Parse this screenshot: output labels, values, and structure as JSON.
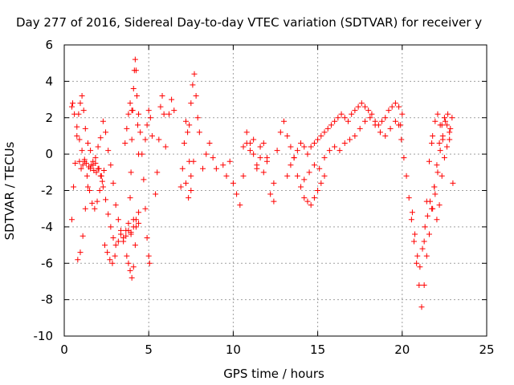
{
  "chart_data": {
    "type": "scatter",
    "title": "Day 277 of 2016, Sidereal Day-to-day VTEC variation (SDTVAR) for receiver y",
    "xlabel": "GPS time / hours",
    "ylabel": "SDTVAR / TECUs",
    "xlim": [
      0,
      25
    ],
    "ylim": [
      -10,
      6
    ],
    "xticks": [
      0,
      5,
      10,
      15,
      20,
      25
    ],
    "yticks": [
      -10,
      -8,
      -6,
      -4,
      -2,
      0,
      2,
      4,
      6
    ],
    "xtick_labels": [
      "0",
      "5",
      "10",
      "15",
      "20",
      "25"
    ],
    "ytick_labels": [
      "-10",
      "-8",
      "-6",
      "-4",
      "-2",
      "0",
      "2",
      "4",
      "6"
    ],
    "grid": true,
    "marker": "+",
    "series": [
      {
        "name": "SDTVAR",
        "color": "#ff0000",
        "tracks": [
          {
            "x": [
              0.45,
              0.5,
              0.6,
              0.75,
              0.9,
              1.05,
              1.2,
              1.35,
              1.5,
              1.65,
              1.8,
              1.95,
              2.1,
              2.25
            ],
            "y": [
              2.6,
              2.8,
              2.2,
              1.5,
              0.8,
              0.2,
              -0.4,
              -1.2,
              -2.0,
              -2.7,
              -3.0,
              -2.6,
              -2.0,
              -1.5
            ]
          },
          {
            "x": [
              0.45,
              0.55,
              0.65,
              0.75,
              0.85,
              0.95,
              1.05,
              1.15,
              1.25,
              1.4,
              1.55,
              1.7,
              1.85,
              2.0,
              2.15,
              2.3,
              2.45,
              2.6,
              2.75,
              2.9,
              3.05,
              3.2,
              3.35,
              3.5,
              3.65,
              3.8,
              3.95,
              4.1,
              4.25,
              4.4
            ],
            "y": [
              -3.6,
              -1.8,
              -0.5,
              1.0,
              2.2,
              2.8,
              3.2,
              2.4,
              1.4,
              0.6,
              0.2,
              -0.6,
              -0.2,
              0.4,
              0.9,
              1.8,
              1.2,
              0.2,
              -0.6,
              -1.6,
              -2.8,
              -3.6,
              -4.2,
              -4.6,
              -4.5,
              -4.2,
              -4.4,
              -4.0,
              -3.6,
              -3.2
            ]
          },
          {
            "x": [
              0.8,
              0.95,
              1.1,
              1.25,
              1.4,
              1.55,
              1.7,
              1.85,
              2.0,
              2.15,
              2.3,
              2.45,
              2.6,
              2.75,
              2.9,
              3.05,
              3.2,
              3.35,
              3.5,
              3.65,
              3.8,
              3.95,
              4.1,
              4.25,
              4.4
            ],
            "y": [
              -5.8,
              -5.4,
              -4.5,
              -3.0,
              -1.8,
              -0.8,
              -0.4,
              -0.5,
              -0.8,
              -1.2,
              -1.8,
              -2.5,
              -3.3,
              -4.0,
              -4.6,
              -5.0,
              -4.8,
              -4.4,
              -4.8,
              -4.2,
              -3.8,
              -4.3,
              -3.6,
              -4.0,
              -3.8
            ]
          },
          {
            "x": [
              0.9,
              1.0,
              1.1,
              1.2,
              1.3,
              1.45,
              1.6,
              1.75,
              1.9,
              2.05,
              2.2,
              2.35
            ],
            "y": [
              -0.4,
              -0.8,
              -0.6,
              -0.3,
              -0.5,
              -0.7,
              -0.6,
              -0.9,
              -1.0,
              -0.8,
              -1.2,
              -0.9
            ]
          },
          {
            "x": [
              2.4,
              2.55,
              2.7,
              2.85,
              3.0
            ],
            "y": [
              -5.0,
              -5.4,
              -5.8,
              -6.0,
              -5.6
            ]
          },
          {
            "x": [
              3.7,
              3.8,
              3.9,
              4.0,
              4.1,
              4.2
            ],
            "y": [
              -5.6,
              -6.0,
              -6.4,
              -6.8,
              -6.2,
              -5.0
            ]
          },
          {
            "x": [
              3.9,
              3.95,
              4.0,
              4.05,
              4.1,
              4.15,
              4.2,
              4.25,
              4.3,
              4.35,
              4.4
            ],
            "y": [
              -2.4,
              -1.0,
              0.8,
              2.4,
              3.6,
              4.6,
              5.2,
              4.6,
              3.2,
              1.6,
              0.0
            ]
          },
          {
            "x": [
              3.6,
              3.7,
              3.8,
              3.9,
              4.0
            ],
            "y": [
              0.6,
              1.4,
              2.2,
              2.8,
              2.4
            ]
          },
          {
            "x": [
              4.4,
              4.5,
              4.6,
              4.7,
              4.8,
              4.9,
              5.0,
              5.05
            ],
            "y": [
              2.2,
              1.2,
              0.0,
              -1.4,
              -3.0,
              -4.6,
              -5.6,
              -6.0
            ]
          },
          {
            "x": [
              4.8,
              4.9,
              5.0,
              5.1,
              5.2
            ],
            "y": [
              0.8,
              1.6,
              2.4,
              2.0,
              1.0
            ]
          },
          {
            "x": [
              5.4,
              5.5,
              5.6,
              5.7,
              5.8,
              5.9,
              6.0
            ],
            "y": [
              -2.2,
              -1.0,
              0.8,
              2.6,
              3.2,
              2.2,
              0.4
            ]
          },
          {
            "x": [
              6.2,
              6.35,
              6.5
            ],
            "y": [
              2.2,
              3.0,
              2.4
            ]
          },
          {
            "x": [
              6.9,
              7.0,
              7.1,
              7.2,
              7.3,
              7.4,
              7.5
            ],
            "y": [
              -1.8,
              -0.8,
              0.6,
              1.8,
              1.2,
              -0.4,
              -2.0
            ]
          },
          {
            "x": [
              7.4,
              7.5,
              7.6,
              7.7,
              7.8,
              7.9,
              8.0
            ],
            "y": [
              1.6,
              2.8,
              3.8,
              4.4,
              3.2,
              2.0,
              1.2
            ]
          },
          {
            "x": [
              7.2,
              7.35,
              7.5,
              7.65
            ],
            "y": [
              -1.6,
              -2.4,
              -1.2,
              -0.4
            ]
          },
          {
            "x": [
              8.2,
              8.4,
              8.6,
              8.8,
              9.0
            ],
            "y": [
              -0.8,
              0.0,
              0.6,
              -0.2,
              -0.8
            ]
          },
          {
            "x": [
              9.4,
              9.6,
              9.8,
              10.0,
              10.2,
              10.4,
              10.6,
              10.8,
              11.0,
              11.2,
              11.4,
              11.6,
              11.8,
              12.0,
              12.2,
              12.4
            ],
            "y": [
              -0.6,
              -1.2,
              -0.4,
              -1.6,
              -2.2,
              -2.8,
              -1.2,
              0.6,
              0.2,
              0.8,
              -0.6,
              0.4,
              -1.0,
              -0.2,
              -2.2,
              -2.6
            ]
          },
          {
            "x": [
              10.6,
              10.8,
              11.0,
              11.2,
              11.4,
              11.6,
              11.8,
              12.0
            ],
            "y": [
              0.4,
              1.2,
              0.6,
              0.0,
              -0.8,
              -0.2,
              0.6,
              -0.4
            ]
          },
          {
            "x": [
              12.4,
              12.6,
              12.8,
              13.0,
              13.2,
              13.4,
              13.6,
              13.8,
              14.0,
              14.2,
              14.4,
              14.6,
              14.8,
              15.0,
              15.2,
              15.4
            ],
            "y": [
              -1.6,
              0.2,
              1.2,
              1.8,
              1.0,
              0.4,
              -0.2,
              -1.2,
              -1.8,
              -2.4,
              -2.6,
              -2.8,
              -2.4,
              -2.0,
              -1.6,
              -1.2
            ]
          },
          {
            "x": [
              13.2,
              13.4,
              13.6,
              13.8,
              14.0,
              14.2,
              14.4,
              14.6,
              14.8,
              15.0,
              15.2,
              15.4,
              15.6,
              15.8,
              16.0,
              16.2,
              16.4,
              16.6,
              16.8,
              17.0,
              17.2,
              17.4,
              17.6,
              17.8,
              18.0,
              18.2,
              18.4,
              18.6,
              18.8,
              19.0,
              19.2,
              19.4,
              19.6,
              19.8,
              20.0
            ],
            "y": [
              -1.2,
              -0.6,
              -0.2,
              0.2,
              0.6,
              0.4,
              0.0,
              0.4,
              0.6,
              0.8,
              1.0,
              1.2,
              1.4,
              1.6,
              1.8,
              2.0,
              2.2,
              2.0,
              1.8,
              2.2,
              2.4,
              2.6,
              2.8,
              2.6,
              2.4,
              2.2,
              1.8,
              1.6,
              1.8,
              2.0,
              2.4,
              2.6,
              2.8,
              2.6,
              2.2
            ]
          },
          {
            "x": [
              14.2,
              14.5,
              14.8,
              15.1,
              15.4,
              15.7,
              16.0,
              16.3,
              16.6,
              16.9,
              17.2,
              17.5,
              17.8,
              18.1,
              18.4,
              18.7,
              19.0,
              19.3,
              19.6,
              19.9
            ],
            "y": [
              -1.4,
              -1.0,
              -0.6,
              -0.8,
              -0.2,
              0.2,
              0.4,
              0.2,
              0.6,
              0.8,
              1.0,
              1.4,
              1.8,
              2.0,
              1.6,
              1.2,
              1.0,
              1.4,
              1.8,
              1.6
            ]
          },
          {
            "x": [
              19.8,
              19.95,
              20.1,
              20.25,
              20.4,
              20.55,
              20.7,
              20.85,
              21.0,
              21.15,
              21.3,
              21.45,
              21.6,
              21.75,
              21.9,
              22.05,
              22.2,
              22.35,
              22.5,
              22.65,
              22.8
            ],
            "y": [
              1.6,
              0.8,
              -0.2,
              -1.2,
              -2.4,
              -3.6,
              -4.8,
              -6.0,
              -7.2,
              -8.4,
              -7.2,
              -5.6,
              -4.4,
              -3.0,
              -1.8,
              -0.6,
              0.6,
              1.6,
              2.0,
              1.6,
              0.8
            ]
          },
          {
            "x": [
              20.6,
              20.75,
              20.9,
              21.05,
              21.2,
              21.35,
              21.5,
              21.65,
              21.8,
              21.95,
              22.1,
              22.25,
              22.4,
              22.55,
              22.7,
              22.85,
              23.0
            ],
            "y": [
              -3.2,
              -4.4,
              -5.6,
              -6.2,
              -5.2,
              -4.0,
              -3.4,
              -2.6,
              -3.0,
              -2.2,
              -1.0,
              0.2,
              1.0,
              1.8,
              2.2,
              1.4,
              -1.6
            ]
          },
          {
            "x": [
              21.3,
              21.45,
              21.6,
              21.75,
              21.9,
              22.05,
              22.2,
              22.35,
              22.5,
              22.65,
              22.8,
              22.95
            ],
            "y": [
              -4.8,
              -2.6,
              -0.4,
              0.6,
              -1.8,
              -3.6,
              -2.8,
              -1.2,
              -0.2,
              0.4,
              1.2,
              2.0
            ]
          },
          {
            "x": [
              21.8,
              21.95,
              22.1,
              22.25,
              22.4
            ],
            "y": [
              1.0,
              1.8,
              2.2,
              1.6,
              0.8
            ]
          }
        ]
      }
    ]
  }
}
